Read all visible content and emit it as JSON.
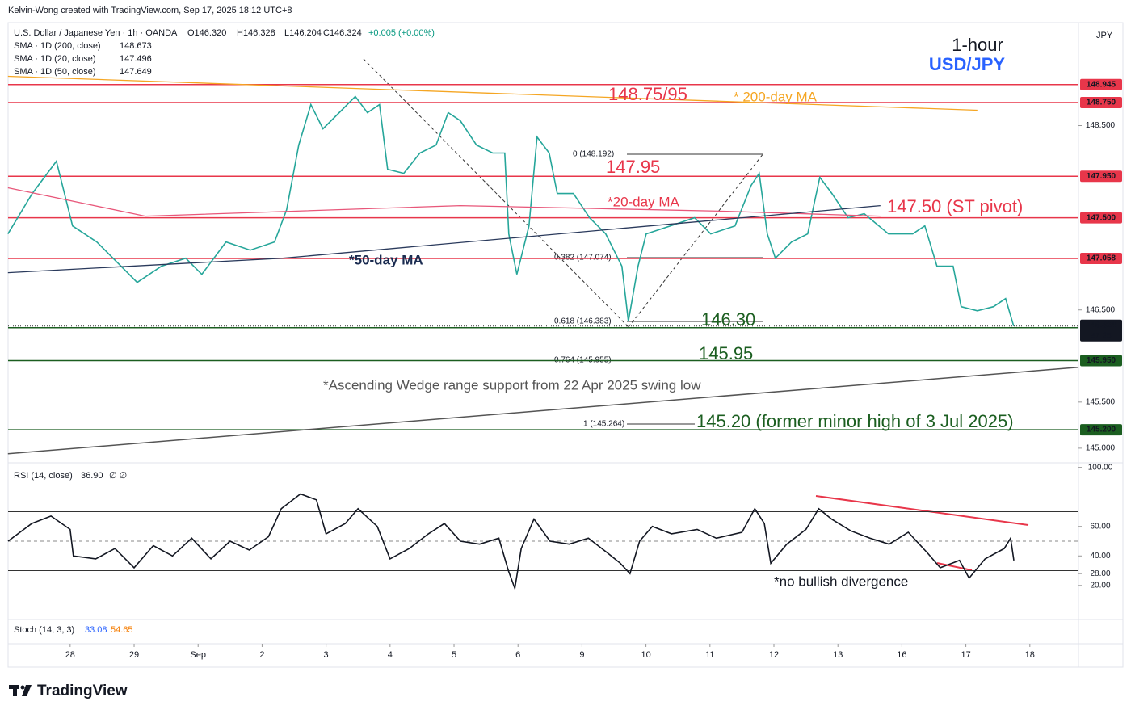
{
  "header": {
    "credit": "Kelvin-Wong created with TradingView.com, Sep 17, 2025 18:12 UTC+8",
    "ohlc": [
      "O146.320",
      "H146.328",
      "L146.204",
      "C146.324"
    ],
    "change": "+0.005 (+0.00%)"
  },
  "currency": "JPY",
  "fib_labels": [
    "0 (148.192)",
    "0.382 (147.074)",
    "0.618 (146.383)",
    "0.764 (145.955)",
    "1 (145.264)"
  ],
  "stoch": {
    "title": "Stoch (14, 3, 3)",
    "k": "33.08",
    "d": "54.65"
  },
  "footer": "TradingView",
  "chart_data": [
    {
      "type": "line",
      "title": "1-hour",
      "subtitle": "USD/JPY",
      "xlim": [
        -0.97,
        15.76
      ],
      "xticks": [
        {
          "value": 0,
          "label": "28"
        },
        {
          "value": 1,
          "label": "29"
        },
        {
          "value": 2,
          "label": "Sep"
        },
        {
          "value": 3,
          "label": "2"
        },
        {
          "value": 4,
          "label": "3"
        },
        {
          "value": 5,
          "label": "4"
        },
        {
          "value": 6,
          "label": "5"
        },
        {
          "value": 7,
          "label": "6"
        },
        {
          "value": 8,
          "label": "9"
        },
        {
          "value": 9,
          "label": "10"
        },
        {
          "value": 10,
          "label": "11"
        },
        {
          "value": 11,
          "label": "12"
        },
        {
          "value": 12,
          "label": "13"
        },
        {
          "value": 13,
          "label": "16"
        },
        {
          "value": 14,
          "label": "17"
        },
        {
          "value": 15,
          "label": "18"
        }
      ],
      "ylim": [
        144.85,
        149.6
      ],
      "yticks": [
        {
          "value": 145,
          "label": "145.000"
        },
        {
          "value": 145.5,
          "label": "145.500"
        },
        {
          "value": 146.5,
          "label": "146.500"
        },
        {
          "value": 148.5,
          "label": "148.500"
        }
      ],
      "grid": false,
      "series": [
        {
          "name": "U.S. Dollar / Japanese Yen · 1h · OANDA",
          "color": "#26a69a",
          "x": [
            -0.972,
            -0.593,
            -0.215,
            0.038,
            0.417,
            0.795,
            1.048,
            1.427,
            1.806,
            2.058,
            2.437,
            2.816,
            3.194,
            3.384,
            3.573,
            3.763,
            3.952,
            4.205,
            4.457,
            4.646,
            4.836,
            4.962,
            5.215,
            5.467,
            5.72,
            5.909,
            6.098,
            6.351,
            6.604,
            6.793,
            6.856,
            6.982,
            7.172,
            7.298,
            7.487,
            7.614,
            7.866,
            8.119,
            8.371,
            8.624,
            8.725,
            8.876,
            9.003,
            9.381,
            9.76,
            10.013,
            10.391,
            10.644,
            10.77,
            10.896,
            11.023,
            11.275,
            11.528,
            11.717,
            11.907,
            12.159,
            12.412,
            12.79,
            13.169,
            13.359,
            13.548,
            13.801,
            13.927,
            14.179,
            14.432,
            14.621,
            14.747
          ],
          "values": [
            147.325,
            147.763,
            148.114,
            147.412,
            147.237,
            146.974,
            146.798,
            146.974,
            147.061,
            146.886,
            147.237,
            147.149,
            147.237,
            147.588,
            148.289,
            148.728,
            148.465,
            148.64,
            148.816,
            148.64,
            148.728,
            148.026,
            147.982,
            148.202,
            148.289,
            148.64,
            148.553,
            148.289,
            148.202,
            148.202,
            147.325,
            146.886,
            147.412,
            148.377,
            148.202,
            147.763,
            147.763,
            147.5,
            147.325,
            146.974,
            146.377,
            146.974,
            147.325,
            147.412,
            147.5,
            147.325,
            147.412,
            147.851,
            147.982,
            147.325,
            147.061,
            147.237,
            147.325,
            147.939,
            147.763,
            147.5,
            147.544,
            147.325,
            147.325,
            147.412,
            146.974,
            146.974,
            146.535,
            146.491,
            146.535,
            146.623,
            146.324
          ]
        },
        {
          "name": "SMA · 1D (200, close)",
          "color": "#f5a623",
          "last": "148.673",
          "x": [
            -0.972,
            14.179
          ],
          "values": [
            149.035,
            148.667
          ]
        },
        {
          "name": "SMA · 1D (20, close)",
          "color": "#e8577a",
          "last": "147.496",
          "x": [
            -0.972,
            1.174,
            6.098,
            10.265,
            12.664
          ],
          "values": [
            147.825,
            147.518,
            147.632,
            147.57,
            147.518
          ]
        },
        {
          "name": "SMA · 1D (50, close)",
          "color": "#2a3a5c",
          "last": "147.649",
          "x": [
            -0.972,
            3.321,
            12.664
          ],
          "values": [
            146.904,
            147.061,
            147.632
          ]
        }
      ],
      "trendline": {
        "color": "#555555",
        "x": [
          -0.972,
          15.76
        ],
        "values": [
          144.939,
          145.877
        ]
      },
      "levels": [
        {
          "value": 148.945,
          "label": "148.945",
          "color": "#e8364a"
        },
        {
          "value": 148.75,
          "label": "148.750",
          "color": "#e8364a"
        },
        {
          "value": 147.95,
          "label": "147.950",
          "color": "#e8364a"
        },
        {
          "value": 147.5,
          "label": "147.500",
          "color": "#e8364a"
        },
        {
          "value": 147.058,
          "label": "147.058",
          "color": "#e8364a"
        },
        {
          "value": 146.307,
          "label": "146.307",
          "color": "#1b5e20"
        },
        {
          "value": 145.95,
          "label": "145.950",
          "color": "#1b5e20"
        },
        {
          "value": 145.2,
          "label": "145.200",
          "color": "#1b5e20"
        }
      ],
      "last_price": {
        "value": 146.324,
        "label": "146.324",
        "countdown": "47:25"
      },
      "annotations": [
        "148.75/95",
        "* 200-day MA",
        "147.95",
        "*20-day MA",
        "147.50 (ST pivot)",
        "*50-day MA",
        "146.30",
        "145.95",
        "*Ascending Wedge range support from 22 Apr 2025 swing low",
        "145.20 (former minor high of 3 Jul 2025)"
      ]
    },
    {
      "type": "line",
      "title": "RSI (14, close)",
      "value_label": "36.90",
      "extra": "∅ ∅",
      "xlim": [
        -0.97,
        15.76
      ],
      "ylim": [
        -2,
        102
      ],
      "yticks": [
        {
          "value": 100,
          "label": "100.00"
        },
        {
          "value": 60,
          "label": "60.00"
        },
        {
          "value": 40,
          "label": "40.00"
        },
        {
          "value": 28,
          "label": "28.00"
        },
        {
          "value": 20,
          "label": "20.00"
        }
      ],
      "bands": [
        30,
        70
      ],
      "midline": 50,
      "series": [
        {
          "color": "#131722",
          "x": [
            -0.97,
            -0.6,
            -0.3,
            0.0,
            0.05,
            0.4,
            0.7,
            1.0,
            1.3,
            1.6,
            1.9,
            2.2,
            2.5,
            2.8,
            3.1,
            3.3,
            3.6,
            3.85,
            4.0,
            4.3,
            4.5,
            4.8,
            5.0,
            5.3,
            5.6,
            5.85,
            6.1,
            6.4,
            6.7,
            6.85,
            6.95,
            7.05,
            7.25,
            7.5,
            7.8,
            8.1,
            8.4,
            8.6,
            8.75,
            8.9,
            9.1,
            9.4,
            9.8,
            10.1,
            10.5,
            10.7,
            10.85,
            10.95,
            11.2,
            11.5,
            11.7,
            11.9,
            12.2,
            12.5,
            12.8,
            13.1,
            13.4,
            13.6,
            13.9,
            14.05,
            14.3,
            14.6,
            14.7,
            14.75
          ],
          "values": [
            50,
            62,
            67,
            58,
            40,
            38,
            45,
            32,
            47,
            40,
            52,
            38,
            50,
            44,
            53,
            72,
            82,
            78,
            55,
            62,
            72,
            60,
            38,
            45,
            55,
            62,
            50,
            48,
            52,
            30,
            18,
            45,
            65,
            50,
            48,
            52,
            42,
            35,
            28,
            50,
            60,
            55,
            58,
            52,
            56,
            72,
            62,
            35,
            48,
            58,
            72,
            65,
            57,
            52,
            48,
            56,
            42,
            32,
            37,
            25,
            38,
            45,
            52,
            36.9
          ]
        }
      ],
      "annotations": [
        "*no bullish divergence"
      ]
    }
  ]
}
